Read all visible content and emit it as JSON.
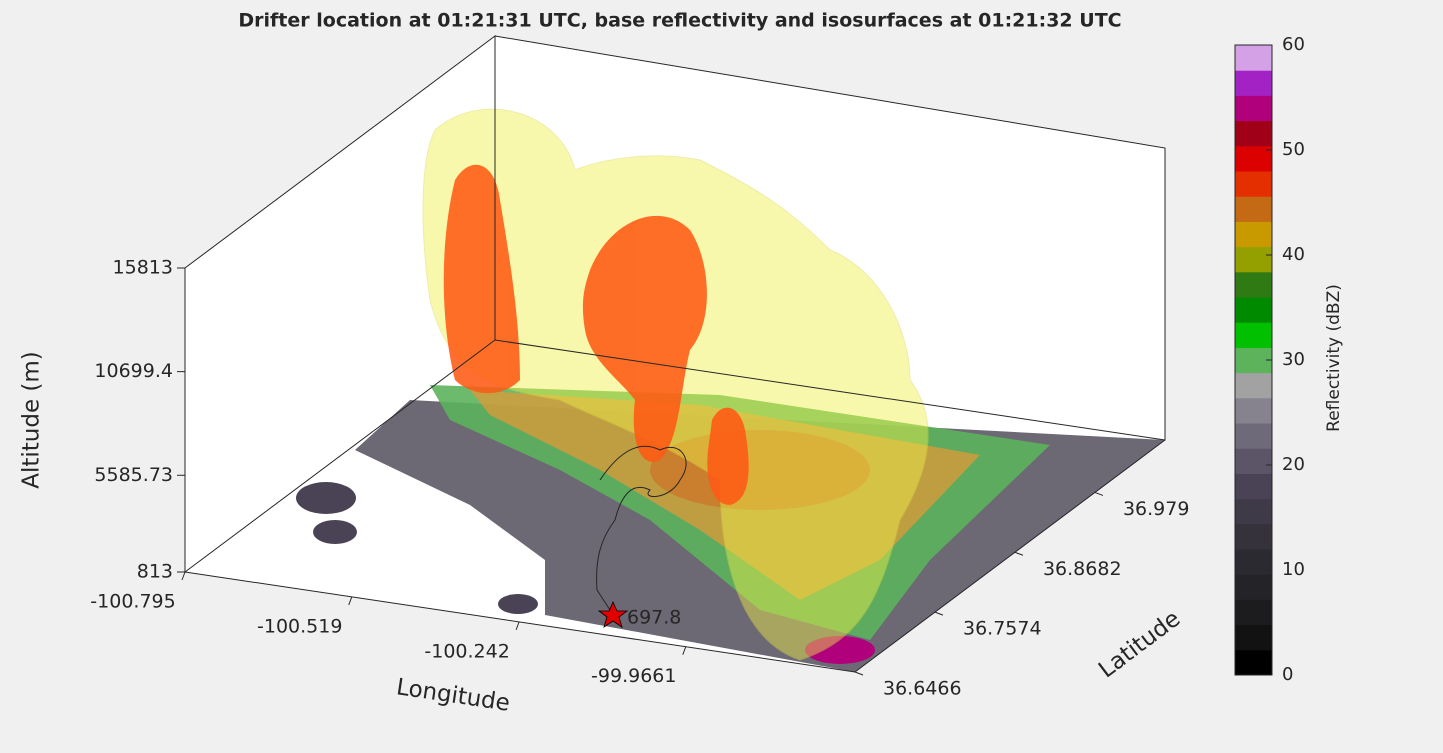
{
  "chart_data": {
    "type": "surface3d",
    "title": "Drifter location at 01:21:31 UTC, base reflectivity and isosurfaces at 01:21:32 UTC",
    "xlabel": "Longitude",
    "ylabel": "Latitude",
    "zlabel": "Altitude (m)",
    "xlim": [
      -100.795,
      -99.686
    ],
    "xticks": [
      -100.795,
      -100.519,
      -100.242,
      -99.9661
    ],
    "ylim": [
      36.6466,
      37.076
    ],
    "yticks": [
      36.6466,
      36.7574,
      36.8682,
      36.979
    ],
    "zlim": [
      813,
      15813
    ],
    "zticks": [
      813,
      5585.73,
      10699.4,
      15813
    ],
    "annotation": "697.8",
    "colorbar": {
      "label": "Reflectivity (dBZ)",
      "clim": [
        0,
        60
      ],
      "ticks": [
        0,
        10,
        20,
        30,
        40,
        50,
        60
      ],
      "colormap": [
        "#000000",
        "#121212",
        "#1c1c1e",
        "#242328",
        "#2c2a31",
        "#35323c",
        "#3f3a48",
        "#4a4356",
        "#5b5567",
        "#6e6a79",
        "#86838f",
        "#a2a2a2",
        "#5cb35c",
        "#00c000",
        "#008a00",
        "#2f7a12",
        "#94a000",
        "#c89a00",
        "#c46a14",
        "#e43000",
        "#dc0000",
        "#a00018",
        "#b0007c",
        "#a322c4",
        "#d4a0e6",
        "#ffffff"
      ]
    }
  }
}
